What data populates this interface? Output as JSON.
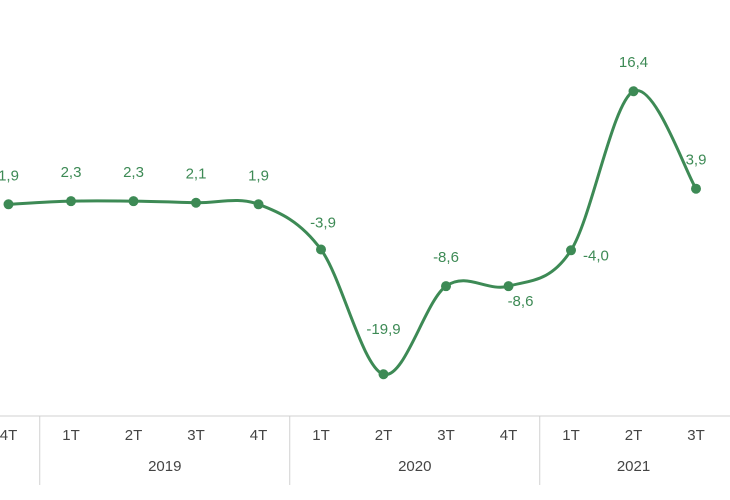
{
  "chart_data": {
    "type": "line",
    "groups": [
      {
        "name": null,
        "categories": [
          "4T"
        ]
      },
      {
        "name": "2019",
        "categories": [
          "1T",
          "2T",
          "3T",
          "4T"
        ]
      },
      {
        "name": "2020",
        "categories": [
          "1T",
          "2T",
          "3T",
          "4T"
        ]
      },
      {
        "name": "2021",
        "categories": [
          "1T",
          "2T",
          "3T"
        ]
      }
    ],
    "values": [
      1.9,
      2.3,
      2.3,
      2.1,
      1.9,
      -3.9,
      -19.9,
      -8.6,
      -8.6,
      -4.0,
      16.4,
      3.9
    ],
    "value_labels": [
      "1,9",
      "2,3",
      "2,3",
      "2,1",
      "1,9",
      "-3,9",
      "-19,9",
      "-8,6",
      "-8,6",
      "-4,0",
      "16,4",
      "3,9"
    ],
    "color": "#3d8a55",
    "ylim": [
      -23.2,
      28.1
    ]
  }
}
